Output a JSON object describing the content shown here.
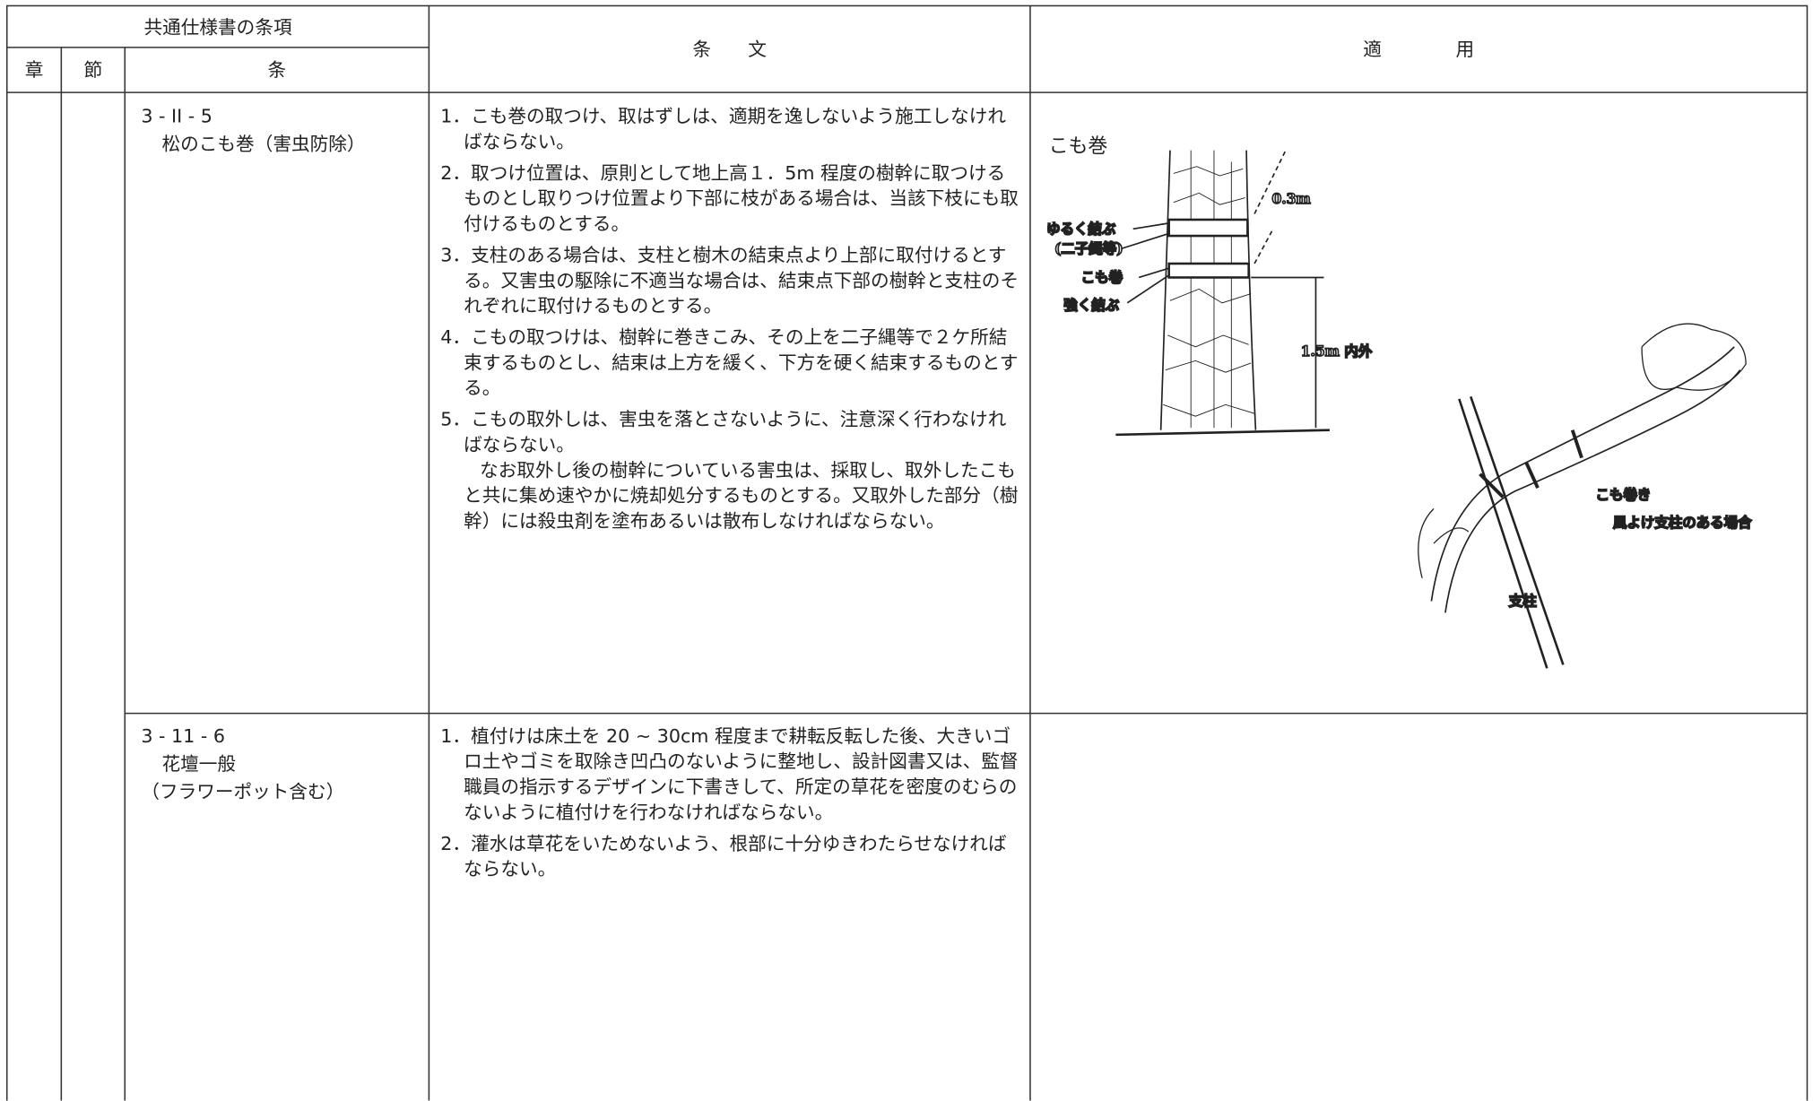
{
  "header": {
    "section_group": "共通仕様書の条項",
    "chapter": "章",
    "section": "節",
    "clause": "条",
    "text": "条　　文",
    "application": "適　　　　用"
  },
  "rows": [
    {
      "clause_number": "3 - II - 5",
      "clause_title": "松のこも巻（害虫防除）",
      "items": [
        {
          "number": "1．",
          "text": "こも巻の取つけ、取はずしは、適期を逸しないよう施工しなければならない。"
        },
        {
          "number": "2．",
          "text": "取つけ位置は、原則として地上高１．5m 程度の樹幹に取つけるものとし取りつけ位置より下部に枝がある場合は、当該下枝にも取付けるものとする。"
        },
        {
          "number": "3．",
          "text": "支柱のある場合は、支柱と樹木の結束点より上部に取付けるとする。又害虫の駆除に不適当な場合は、結束点下部の樹幹と支柱のそれぞれに取付けるものとする。"
        },
        {
          "number": "4．",
          "text": "こもの取つけは、樹幹に巻きこみ、その上を二子縄等で２ケ所結束するものとし、結束は上方を緩く、下方を硬く結束するものとする。"
        },
        {
          "number": "5．",
          "text": "こもの取外しは、害虫を落とさないように、注意深く行わなければならない。",
          "note": "なお取外し後の樹幹についている害虫は、採取し、取外したこもと共に集め速やかに焼却処分するものとする。又取外した部分（樹幹）には殺虫剤を塗布あるいは散布しなければならない。"
        }
      ],
      "figure": {
        "title": "こも巻",
        "label_loose": "ゆるく結ぶ",
        "label_rope": "(二子縄等)",
        "label_komo": "こも巻",
        "label_tight": "強く結ぶ",
        "label_03": "0.3m",
        "label_15": "1.5m 内外",
        "label_komo2": "こも巻き",
        "label_case": "風よけ支柱のある場合",
        "label_pole": "支柱"
      }
    },
    {
      "clause_number": "3 - 11 - 6",
      "clause_title": "花壇一般",
      "clause_subtitle": "（フラワーポット含む）",
      "items": [
        {
          "number": "1．",
          "text": "植付けは床土を 20 ~ 30cm 程度まで耕転反転した後、大きいゴロ土やゴミを取除き凹凸のないように整地し、設計図書又は、監督職員の指示するデザインに下書きして、所定の草花を密度のむらのないように植付けを行わなければならない。"
        },
        {
          "number": "2．",
          "text": "灌水は草花をいためないよう、根部に十分ゆきわたらせなければならない。"
        }
      ]
    }
  ]
}
